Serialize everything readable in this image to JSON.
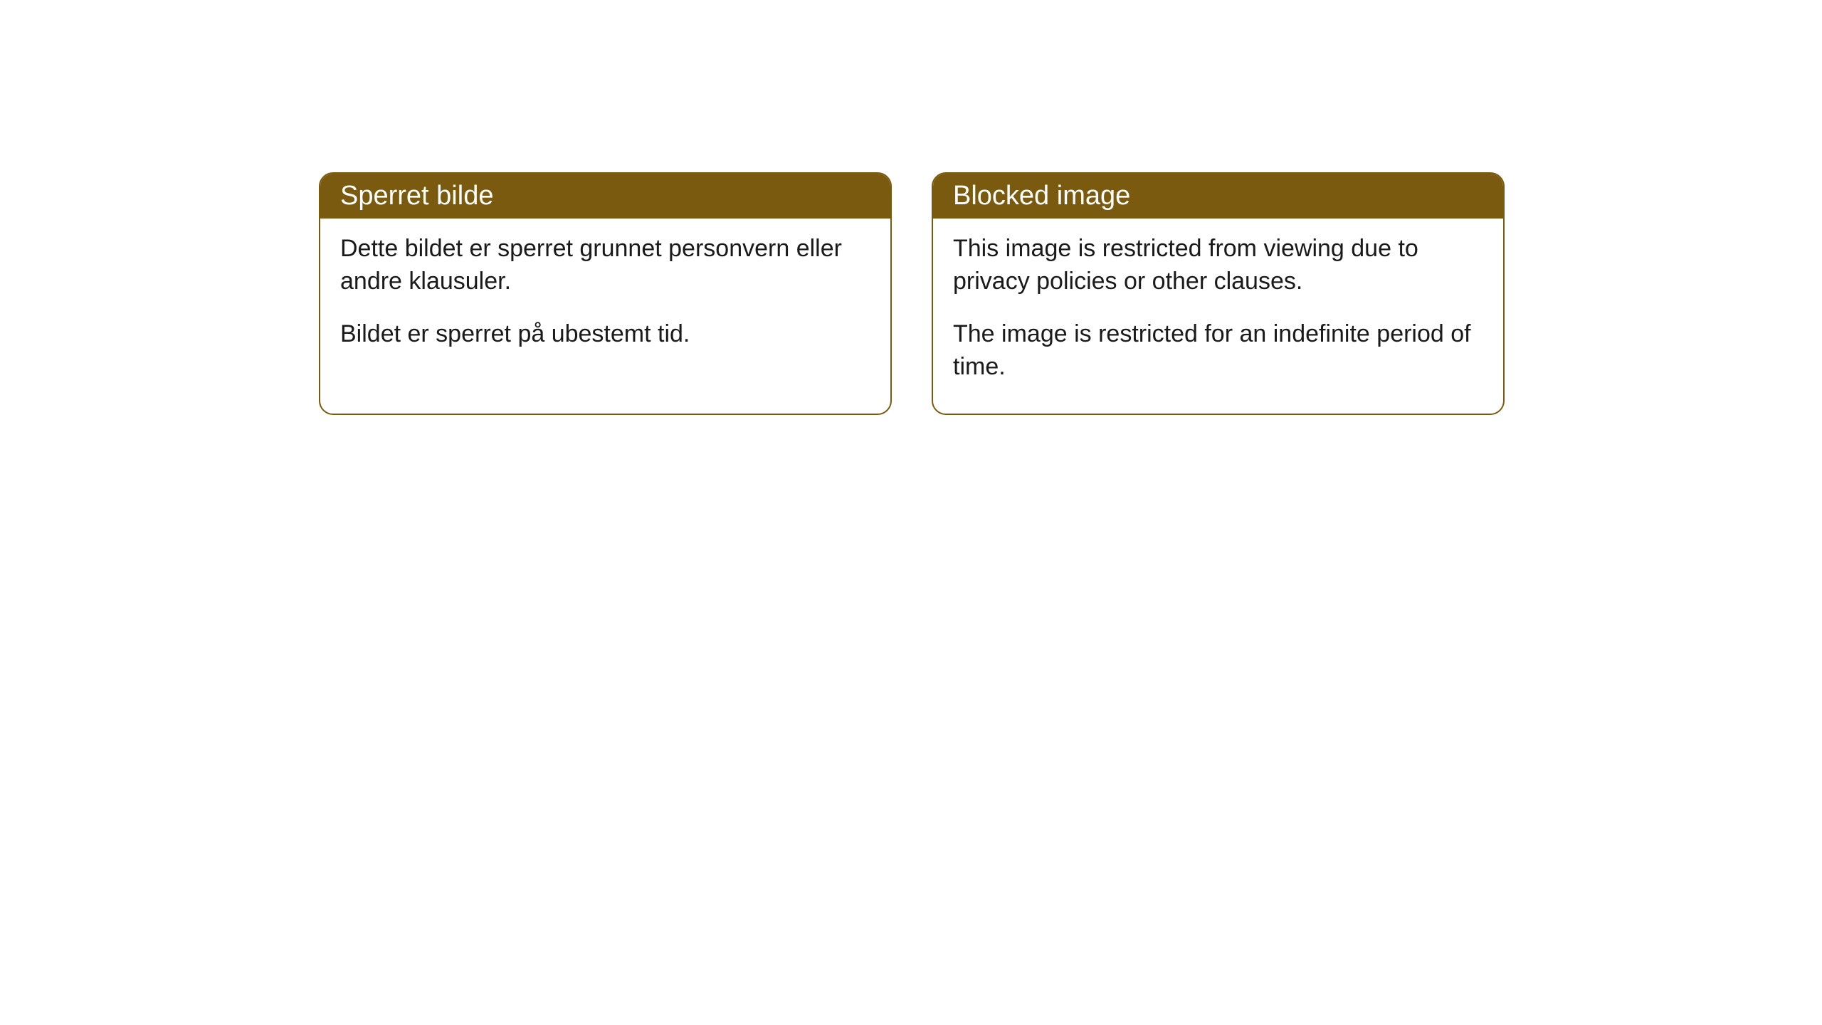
{
  "cards": [
    {
      "title": "Sperret bilde",
      "paragraph1": "Dette bildet er sperret grunnet personvern eller andre klausuler.",
      "paragraph2": "Bildet er sperret på ubestemt tid."
    },
    {
      "title": "Blocked image",
      "paragraph1": "This image is restricted from viewing due to privacy policies or other clauses.",
      "paragraph2": "The image is restricted for an indefinite period of time."
    }
  ],
  "styling": {
    "header_background": "#7a5a0e",
    "header_text_color": "#ffffff",
    "body_text_color": "#1a1a1a",
    "card_border_color": "#7a5a0e",
    "card_background": "#ffffff",
    "page_background": "#ffffff",
    "border_radius": 20,
    "title_fontsize": 38,
    "body_fontsize": 34
  }
}
